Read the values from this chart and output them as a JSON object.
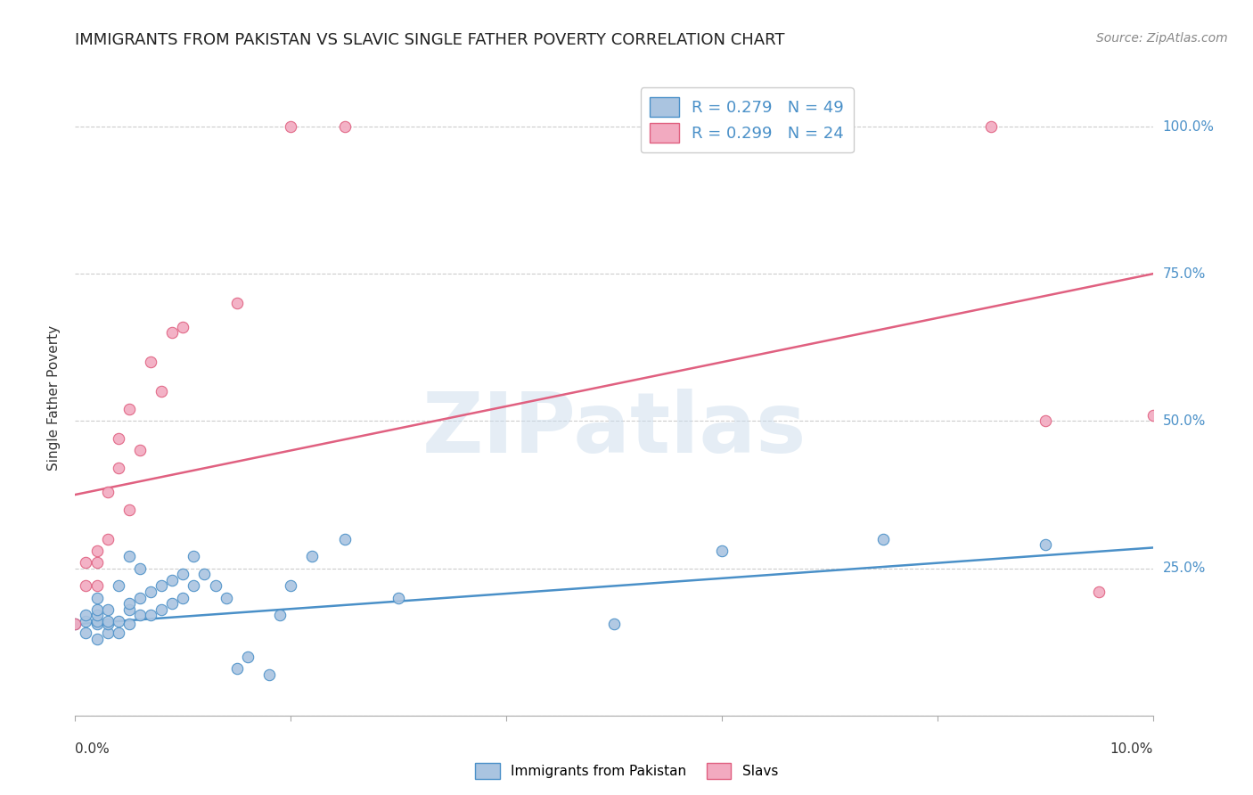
{
  "title": "IMMIGRANTS FROM PAKISTAN VS SLAVIC SINGLE FATHER POVERTY CORRELATION CHART",
  "source": "Source: ZipAtlas.com",
  "ylabel": "Single Father Poverty",
  "legend_r1": "0.279",
  "legend_n1": "49",
  "legend_r2": "0.299",
  "legend_n2": "24",
  "color_blue": "#aac4e0",
  "color_pink": "#f2aac0",
  "line_blue": "#4a90c8",
  "line_pink": "#e06080",
  "watermark": "ZIPatlas",
  "background_color": "#ffffff",
  "pakistan_x": [
    0.0,
    0.001,
    0.001,
    0.001,
    0.002,
    0.002,
    0.002,
    0.002,
    0.002,
    0.002,
    0.003,
    0.003,
    0.003,
    0.003,
    0.004,
    0.004,
    0.004,
    0.005,
    0.005,
    0.005,
    0.005,
    0.006,
    0.006,
    0.006,
    0.007,
    0.007,
    0.008,
    0.008,
    0.009,
    0.009,
    0.01,
    0.01,
    0.011,
    0.011,
    0.012,
    0.013,
    0.014,
    0.015,
    0.016,
    0.018,
    0.019,
    0.02,
    0.022,
    0.025,
    0.03,
    0.05,
    0.06,
    0.075,
    0.09
  ],
  "pakistan_y": [
    0.155,
    0.14,
    0.16,
    0.17,
    0.13,
    0.155,
    0.16,
    0.17,
    0.18,
    0.2,
    0.14,
    0.155,
    0.16,
    0.18,
    0.14,
    0.16,
    0.22,
    0.155,
    0.18,
    0.19,
    0.27,
    0.17,
    0.2,
    0.25,
    0.17,
    0.21,
    0.18,
    0.22,
    0.19,
    0.23,
    0.2,
    0.24,
    0.22,
    0.27,
    0.24,
    0.22,
    0.2,
    0.08,
    0.1,
    0.07,
    0.17,
    0.22,
    0.27,
    0.3,
    0.2,
    0.155,
    0.28,
    0.3,
    0.29
  ],
  "slavs_x": [
    0.0,
    0.001,
    0.001,
    0.002,
    0.002,
    0.002,
    0.003,
    0.003,
    0.004,
    0.004,
    0.005,
    0.005,
    0.006,
    0.007,
    0.008,
    0.009,
    0.01,
    0.015,
    0.02,
    0.025,
    0.085,
    0.09,
    0.095,
    0.1
  ],
  "slavs_y": [
    0.155,
    0.22,
    0.26,
    0.22,
    0.26,
    0.28,
    0.3,
    0.38,
    0.42,
    0.47,
    0.52,
    0.35,
    0.45,
    0.6,
    0.55,
    0.65,
    0.66,
    0.7,
    1.0,
    1.0,
    1.0,
    0.5,
    0.21,
    0.51
  ],
  "blue_trend_x": [
    0.0,
    0.1
  ],
  "blue_trend_y": [
    0.155,
    0.285
  ],
  "pink_trend_x": [
    0.0,
    0.1
  ],
  "pink_trend_y": [
    0.375,
    0.75
  ],
  "xlim": [
    0.0,
    0.1
  ],
  "ylim": [
    0.0,
    1.08
  ],
  "ytick_positions": [
    0.0,
    0.25,
    0.5,
    0.75,
    1.0
  ],
  "ytick_labels_right": [
    "",
    "25.0%",
    "50.0%",
    "75.0%",
    "100.0%"
  ],
  "grid_color": "#cccccc",
  "title_fontsize": 13,
  "axis_label_fontsize": 11,
  "tick_label_fontsize": 11,
  "legend_fontsize": 13,
  "source_fontsize": 10
}
